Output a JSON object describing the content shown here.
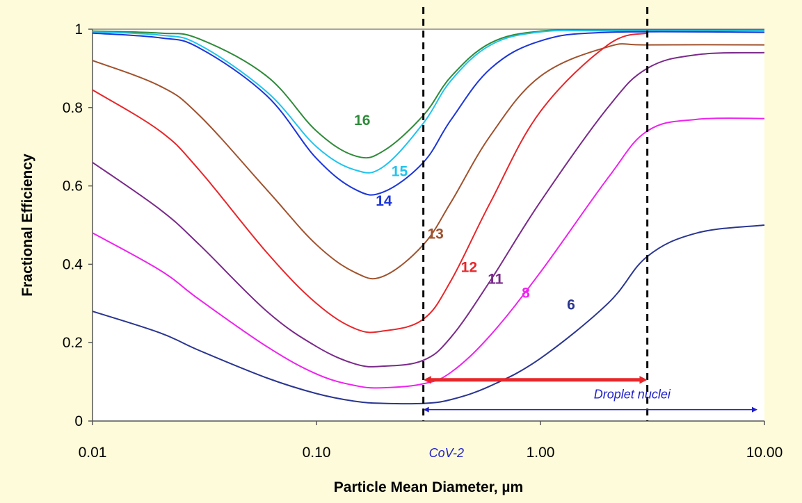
{
  "chart_data": {
    "type": "line",
    "title": "",
    "xlabel": "Particle Mean Diameter, µm",
    "ylabel": "Fractional Efficiency",
    "x_scale": "log",
    "xlim": [
      0.01,
      10
    ],
    "ylim": [
      0,
      1
    ],
    "x_ticks": [
      "0.01",
      "0.10",
      "1.00",
      "10.00"
    ],
    "y_ticks": [
      "0",
      "0.2",
      "0.4",
      "0.6",
      "0.8",
      "1"
    ],
    "grid": false,
    "legend": "none",
    "series": [
      {
        "name": "16",
        "color": "#2e8b3a",
        "x": [
          0.01,
          0.02,
          0.03,
          0.06,
          0.1,
          0.15,
          0.2,
          0.3,
          0.4,
          0.6,
          1,
          2,
          10
        ],
        "y": [
          0.995,
          0.99,
          0.975,
          0.88,
          0.74,
          0.676,
          0.69,
          0.78,
          0.88,
          0.965,
          0.995,
          0.998,
          0.998
        ]
      },
      {
        "name": "15",
        "color": "#1fc4ee",
        "x": [
          0.01,
          0.02,
          0.03,
          0.06,
          0.1,
          0.15,
          0.2,
          0.3,
          0.4,
          0.6,
          1,
          2,
          10
        ],
        "y": [
          0.993,
          0.985,
          0.96,
          0.84,
          0.7,
          0.64,
          0.65,
          0.76,
          0.87,
          0.96,
          0.993,
          0.996,
          0.996
        ]
      },
      {
        "name": "14",
        "color": "#1c36d8",
        "x": [
          0.01,
          0.02,
          0.03,
          0.06,
          0.1,
          0.15,
          0.2,
          0.3,
          0.4,
          0.6,
          1,
          2,
          10
        ],
        "y": [
          0.99,
          0.978,
          0.952,
          0.83,
          0.67,
          0.59,
          0.585,
          0.66,
          0.77,
          0.9,
          0.97,
          0.992,
          0.992
        ]
      },
      {
        "name": "13",
        "color": "#a0522d",
        "x": [
          0.01,
          0.02,
          0.03,
          0.06,
          0.1,
          0.15,
          0.2,
          0.3,
          0.4,
          0.6,
          1,
          2,
          3,
          10
        ],
        "y": [
          0.92,
          0.855,
          0.78,
          0.59,
          0.45,
          0.378,
          0.37,
          0.45,
          0.56,
          0.73,
          0.88,
          0.955,
          0.96,
          0.96
        ]
      },
      {
        "name": "12",
        "color": "#e8262a",
        "x": [
          0.01,
          0.02,
          0.03,
          0.06,
          0.1,
          0.15,
          0.2,
          0.3,
          0.4,
          0.6,
          1,
          2,
          3
        ],
        "y": [
          0.845,
          0.74,
          0.64,
          0.43,
          0.3,
          0.235,
          0.23,
          0.26,
          0.36,
          0.56,
          0.79,
          0.96,
          0.99
        ]
      },
      {
        "name": "11",
        "color": "#7a2a8a",
        "x": [
          0.01,
          0.02,
          0.03,
          0.06,
          0.1,
          0.15,
          0.2,
          0.3,
          0.4,
          0.6,
          1,
          2,
          3,
          5,
          10
        ],
        "y": [
          0.66,
          0.54,
          0.45,
          0.28,
          0.19,
          0.145,
          0.14,
          0.155,
          0.215,
          0.36,
          0.56,
          0.8,
          0.9,
          0.935,
          0.94
        ]
      },
      {
        "name": "8",
        "color": "#ee22ee",
        "x": [
          0.01,
          0.02,
          0.03,
          0.06,
          0.1,
          0.15,
          0.2,
          0.3,
          0.4,
          0.6,
          1,
          2,
          3,
          5,
          10
        ],
        "y": [
          0.48,
          0.385,
          0.31,
          0.19,
          0.12,
          0.09,
          0.085,
          0.095,
          0.125,
          0.22,
          0.38,
          0.62,
          0.74,
          0.77,
          0.772
        ]
      },
      {
        "name": "6",
        "color": "#2a3590",
        "x": [
          0.01,
          0.02,
          0.03,
          0.06,
          0.1,
          0.15,
          0.2,
          0.3,
          0.4,
          0.6,
          1,
          2,
          3,
          5,
          10
        ],
        "y": [
          0.28,
          0.225,
          0.18,
          0.11,
          0.07,
          0.05,
          0.045,
          0.045,
          0.055,
          0.09,
          0.16,
          0.3,
          0.42,
          0.48,
          0.5
        ]
      }
    ],
    "series_labels": [
      {
        "text": "16",
        "x": 0.16,
        "y": 0.755
      },
      {
        "text": "15",
        "x": 0.235,
        "y": 0.625
      },
      {
        "text": "14",
        "x": 0.2,
        "y": 0.55
      },
      {
        "text": "13",
        "x": 0.34,
        "y": 0.465
      },
      {
        "text": "12",
        "x": 0.48,
        "y": 0.38
      },
      {
        "text": "11",
        "x": 0.63,
        "y": 0.35
      },
      {
        "text": "8",
        "x": 0.86,
        "y": 0.315
      },
      {
        "text": "6",
        "x": 1.37,
        "y": 0.285
      }
    ],
    "annotations": {
      "vlines": [
        0.3,
        3.0
      ],
      "cov2": {
        "text": "CoV-2",
        "x_from": 0.3,
        "x_to": 3.0,
        "y": 0.105,
        "color": "#e8262a"
      },
      "droplet_nuclei": {
        "text": "Droplet nuclei",
        "x_from": 0.3,
        "x_to": 10,
        "y": 0.022,
        "color": "#1f1fc8"
      }
    }
  }
}
